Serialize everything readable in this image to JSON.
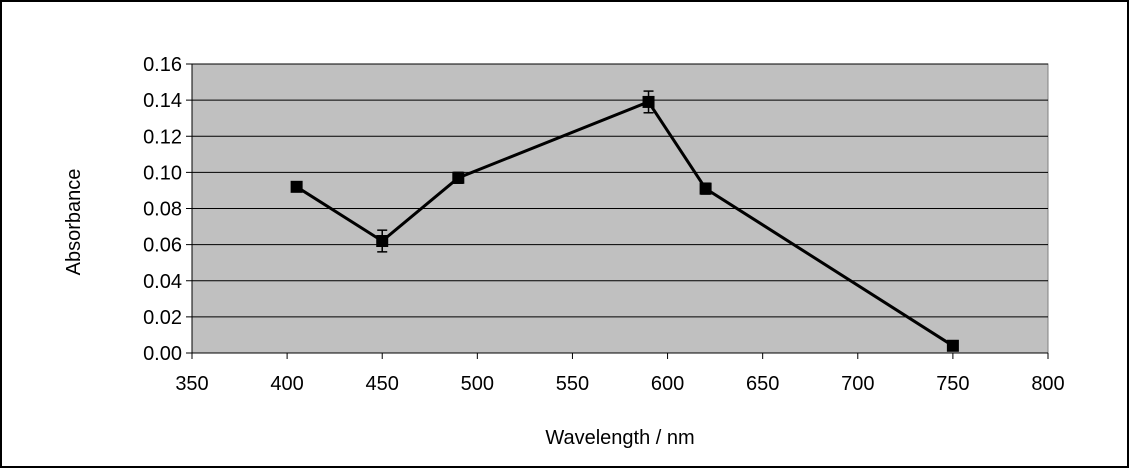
{
  "chart_data": {
    "type": "line",
    "title": "",
    "xlabel": "Wavelength / nm",
    "ylabel": "Absorbance",
    "xlim": [
      350,
      800
    ],
    "ylim": [
      0,
      0.16
    ],
    "x_ticks": [
      "350",
      "400",
      "450",
      "500",
      "550",
      "600",
      "650",
      "700",
      "750",
      "800"
    ],
    "y_ticks": [
      "0.00",
      "0.02",
      "0.04",
      "0.06",
      "0.08",
      "0.10",
      "0.12",
      "0.14",
      "0.16"
    ],
    "grid": "horizontal",
    "series": [
      {
        "x": [
          405,
          450,
          490,
          590,
          620,
          750
        ],
        "y": [
          0.092,
          0.062,
          0.097,
          0.139,
          0.091,
          0.004
        ],
        "error": [
          0.002,
          0.006,
          0.003,
          0.006,
          0.003,
          0.001
        ],
        "marker": "square",
        "color": "#000000"
      }
    ],
    "plot_background": "#c0c0c0"
  }
}
